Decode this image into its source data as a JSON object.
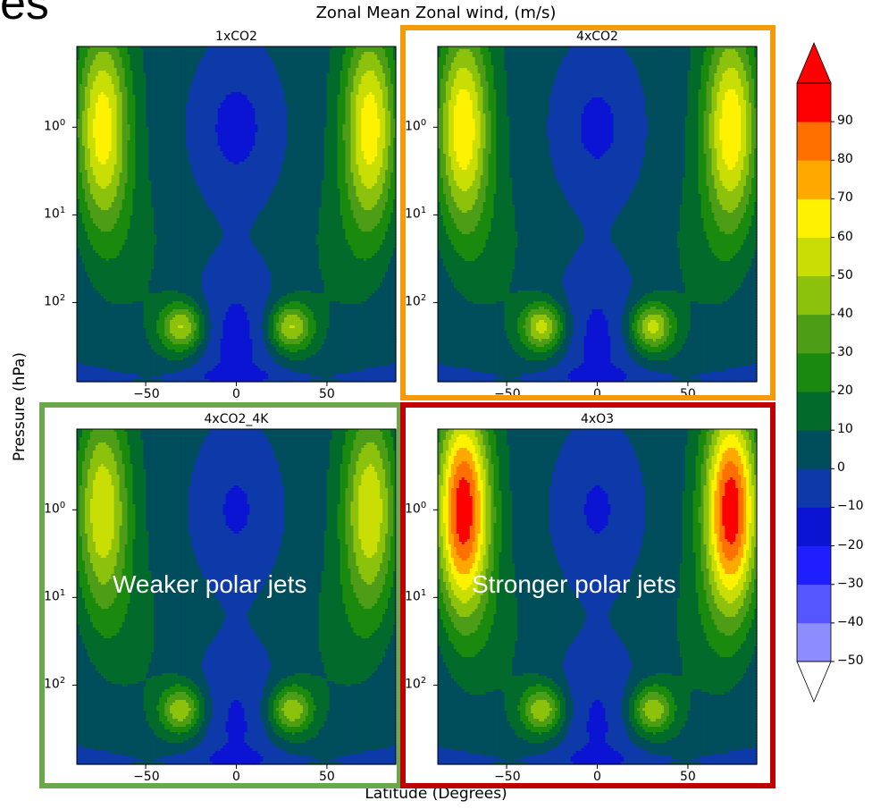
{
  "page": {
    "cut_title": "es",
    "title": "Zonal Mean Zonal wind, (m/s)",
    "xlabel": "Latitude (Degrees)",
    "ylabel": "Pressure (hPa)"
  },
  "chart_data": {
    "type": "heatmap",
    "title": "Zonal Mean Zonal wind, (m/s)",
    "xlabel": "Latitude (Degrees)",
    "ylabel": "Pressure (hPa)",
    "x_ticks": [
      "−50",
      "0",
      "50"
    ],
    "x_tick_values": [
      -50,
      0,
      50
    ],
    "y_ticks": [
      "10",
      "10",
      "10"
    ],
    "y_tick_exponents": [
      "0",
      "1",
      "2"
    ],
    "y_tick_values": [
      1,
      10,
      100
    ],
    "y_scale": "log",
    "xlim": [
      -88,
      88
    ],
    "ylim_hPa": [
      800,
      0.12
    ],
    "colorbar": {
      "levels": [
        -50,
        -40,
        -30,
        -20,
        -10,
        0,
        10,
        20,
        30,
        40,
        50,
        60,
        70,
        80,
        90
      ],
      "labels": [
        "−50",
        "−40",
        "−30",
        "−20",
        "−10",
        "0",
        "10",
        "20",
        "30",
        "40",
        "50",
        "60",
        "70",
        "80",
        "90"
      ],
      "colors": [
        "#8d8dff",
        "#5656ff",
        "#1e1eff",
        "#0a14d2",
        "#0d3aa8",
        "#004d5c",
        "#026a2b",
        "#1a8a0e",
        "#4e9d17",
        "#8cc10c",
        "#c9de05",
        "#fff200",
        "#ffa800",
        "#ff7000",
        "#ff0000"
      ],
      "extend": "both"
    },
    "panels": [
      {
        "title": "1xCO2",
        "jet_peak": 64,
        "lowlat_min": -14,
        "subtrop_max": 49,
        "annotation": ""
      },
      {
        "title": "4xCO2",
        "jet_peak": 66,
        "lowlat_min": -13,
        "subtrop_max": 51,
        "annotation": ""
      },
      {
        "title": "4xCO2_4K",
        "jet_peak": 57,
        "lowlat_min": -12,
        "subtrop_max": 46,
        "annotation": "Weaker polar jets"
      },
      {
        "title": "4xO3",
        "jet_peak": 96,
        "lowlat_min": -12,
        "subtrop_max": 46,
        "annotation": "Stronger polar jets"
      }
    ],
    "highlight_colors": [
      "#f59b0a",
      "#6aa84f",
      "#c00000"
    ]
  }
}
